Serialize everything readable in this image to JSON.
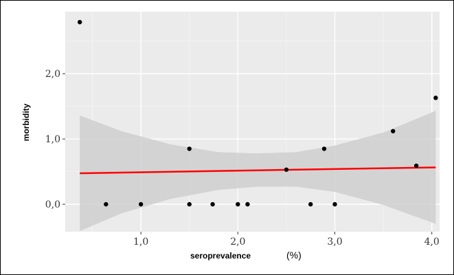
{
  "chart_data": {
    "type": "scatter",
    "xlabel": "seroprevalence",
    "xunit": "(%)",
    "ylabel": "morbidity",
    "xlim": [
      0.22,
      4.08
    ],
    "ylim": [
      -0.42,
      2.95
    ],
    "xticks": [
      {
        "value": 1.0,
        "label": "1,0"
      },
      {
        "value": 2.0,
        "label": "2,0"
      },
      {
        "value": 3.0,
        "label": "3,0"
      },
      {
        "value": 4.0,
        "label": "4,0"
      }
    ],
    "yticks": [
      {
        "value": 0.0,
        "label": "0,0"
      },
      {
        "value": 1.0,
        "label": "1,0"
      },
      {
        "value": 2.0,
        "label": "2,0"
      }
    ],
    "grid": true,
    "background": "#ebebeb",
    "points": [
      {
        "x": 0.37,
        "y": 2.79
      },
      {
        "x": 0.64,
        "y": 0.0
      },
      {
        "x": 1.0,
        "y": 0.0
      },
      {
        "x": 1.5,
        "y": 0.85
      },
      {
        "x": 1.5,
        "y": 0.0
      },
      {
        "x": 1.74,
        "y": 0.0
      },
      {
        "x": 2.0,
        "y": 0.0
      },
      {
        "x": 2.1,
        "y": 0.0
      },
      {
        "x": 2.5,
        "y": 0.53
      },
      {
        "x": 2.75,
        "y": 0.0
      },
      {
        "x": 2.89,
        "y": 0.85
      },
      {
        "x": 3.0,
        "y": 0.0
      },
      {
        "x": 3.6,
        "y": 1.12
      },
      {
        "x": 3.84,
        "y": 0.59
      },
      {
        "x": 4.04,
        "y": 1.63
      }
    ],
    "fit_line": {
      "color": "#ff0000",
      "x": [
        0.37,
        4.04
      ],
      "y": [
        0.475,
        0.565
      ]
    },
    "confidence_band": {
      "color": "#cfcfcf",
      "x": [
        0.37,
        0.8,
        1.3,
        1.8,
        2.2,
        2.6,
        3.0,
        3.5,
        4.04
      ],
      "upper": [
        1.36,
        1.12,
        0.92,
        0.8,
        0.78,
        0.8,
        0.9,
        1.1,
        1.43
      ],
      "lower": [
        -0.41,
        -0.14,
        0.08,
        0.22,
        0.27,
        0.27,
        0.19,
        -0.01,
        -0.3
      ]
    },
    "point_color": "#000000"
  }
}
